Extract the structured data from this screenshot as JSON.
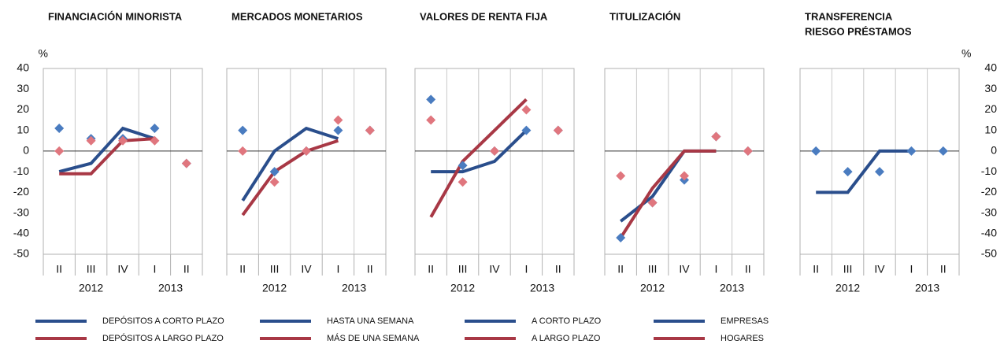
{
  "chart_data": [
    {
      "type": "line",
      "title": "FINANCIACIÓN MINORISTA",
      "ylabel": "%",
      "yaxis_side": "left",
      "categories": [
        "II",
        "III",
        "IV",
        "I",
        "II"
      ],
      "years": [
        "2012",
        "2013"
      ],
      "ylim": [
        -50,
        40
      ],
      "yticks": [
        -50,
        -40,
        -30,
        -20,
        -10,
        0,
        10,
        20,
        30,
        40
      ],
      "series": [
        {
          "name": "DEPÓSITOS A CORTO PLAZO",
          "color": "#2a4e8c",
          "marker_color": "#4a7cc0",
          "values": [
            -10,
            -6,
            11,
            6,
            null
          ],
          "expected": [
            11,
            6,
            6,
            11,
            -6
          ]
        },
        {
          "name": "DEPÓSITOS A LARGO PLAZO",
          "color": "#a83845",
          "marker_color": "#e0767e",
          "values": [
            -11,
            -11,
            5,
            6,
            null
          ],
          "expected": [
            0,
            5,
            5,
            5,
            -6
          ]
        }
      ]
    },
    {
      "type": "line",
      "title": "MERCADOS MONETARIOS",
      "categories": [
        "II",
        "III",
        "IV",
        "I",
        "II"
      ],
      "years": [
        "2012",
        "2013"
      ],
      "ylim": [
        -50,
        40
      ],
      "series": [
        {
          "name": "HASTA UNA SEMANA",
          "color": "#2a4e8c",
          "marker_color": "#4a7cc0",
          "values": [
            -24,
            0,
            11,
            6,
            null
          ],
          "expected": [
            10,
            -10,
            0,
            10,
            10
          ]
        },
        {
          "name": "MÁS DE UNA SEMANA",
          "color": "#a83845",
          "marker_color": "#e0767e",
          "values": [
            -31,
            -10,
            0,
            5,
            null
          ],
          "expected": [
            0,
            -15,
            0,
            15,
            10
          ]
        }
      ]
    },
    {
      "type": "line",
      "title": "VALORES DE RENTA FIJA",
      "categories": [
        "II",
        "III",
        "IV",
        "I",
        "II"
      ],
      "years": [
        "2012",
        "2013"
      ],
      "ylim": [
        -50,
        40
      ],
      "series": [
        {
          "name": "A CORTO PLAZO",
          "color": "#2a4e8c",
          "marker_color": "#4a7cc0",
          "values": [
            -10,
            -10,
            -5,
            10,
            null
          ],
          "expected": [
            25,
            -7,
            0,
            10,
            10
          ]
        },
        {
          "name": "A LARGO PLAZO",
          "color": "#a83845",
          "marker_color": "#e0767e",
          "values": [
            -32,
            -5,
            10,
            25,
            null
          ],
          "expected": [
            15,
            -15,
            0,
            20,
            10
          ]
        }
      ]
    },
    {
      "type": "line",
      "title": "TITULIZACIÓN",
      "categories": [
        "II",
        "III",
        "IV",
        "I",
        "II"
      ],
      "years": [
        "2012",
        "2013"
      ],
      "ylim": [
        -50,
        40
      ],
      "series": [
        {
          "name": "EMPRESAS",
          "color": "#2a4e8c",
          "marker_color": "#4a7cc0",
          "values": [
            -34,
            -22,
            0,
            0,
            null
          ],
          "expected": [
            -42,
            -25,
            -14,
            7,
            0
          ]
        },
        {
          "name": "HOGARES",
          "color": "#a83845",
          "marker_color": "#e0767e",
          "values": [
            -42,
            -18,
            0,
            0,
            null
          ],
          "expected": [
            -12,
            -25,
            -12,
            7,
            0
          ]
        }
      ]
    },
    {
      "type": "line",
      "title": [
        "TRANSFERENCIA",
        "RIESGO PRÉSTAMOS"
      ],
      "ylabel": "%",
      "yaxis_side": "right",
      "categories": [
        "II",
        "III",
        "IV",
        "I",
        "II"
      ],
      "years": [
        "2012",
        "2013"
      ],
      "ylim": [
        -50,
        40
      ],
      "yticks": [
        -50,
        -40,
        -30,
        -20,
        -10,
        0,
        10,
        20,
        30,
        40
      ],
      "series": [
        {
          "color": "#2a4e8c",
          "marker_color": "#4a7cc0",
          "values": [
            -20,
            -20,
            0,
            0,
            null
          ],
          "expected": [
            0,
            -10,
            -10,
            0,
            0
          ]
        }
      ]
    }
  ]
}
